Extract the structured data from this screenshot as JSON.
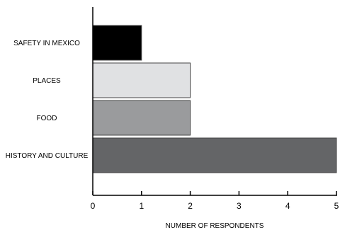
{
  "chart_data": {
    "type": "bar",
    "orientation": "horizontal",
    "title": "",
    "xlabel": "NUMBER OF RESPONDENTS",
    "ylabel": "",
    "xlim": [
      0,
      5
    ],
    "x_ticks": [
      "0",
      "1",
      "2",
      "3",
      "4",
      "5"
    ],
    "grid": false,
    "categories": [
      "SAFETY IN MEXICO",
      "PLACES",
      "FOOD",
      "HISTORY AND CULTURE"
    ],
    "values": [
      1,
      2,
      2,
      5
    ],
    "colors": [
      "#000000",
      "#e0e1e3",
      "#9a9b9d",
      "#646567"
    ]
  }
}
